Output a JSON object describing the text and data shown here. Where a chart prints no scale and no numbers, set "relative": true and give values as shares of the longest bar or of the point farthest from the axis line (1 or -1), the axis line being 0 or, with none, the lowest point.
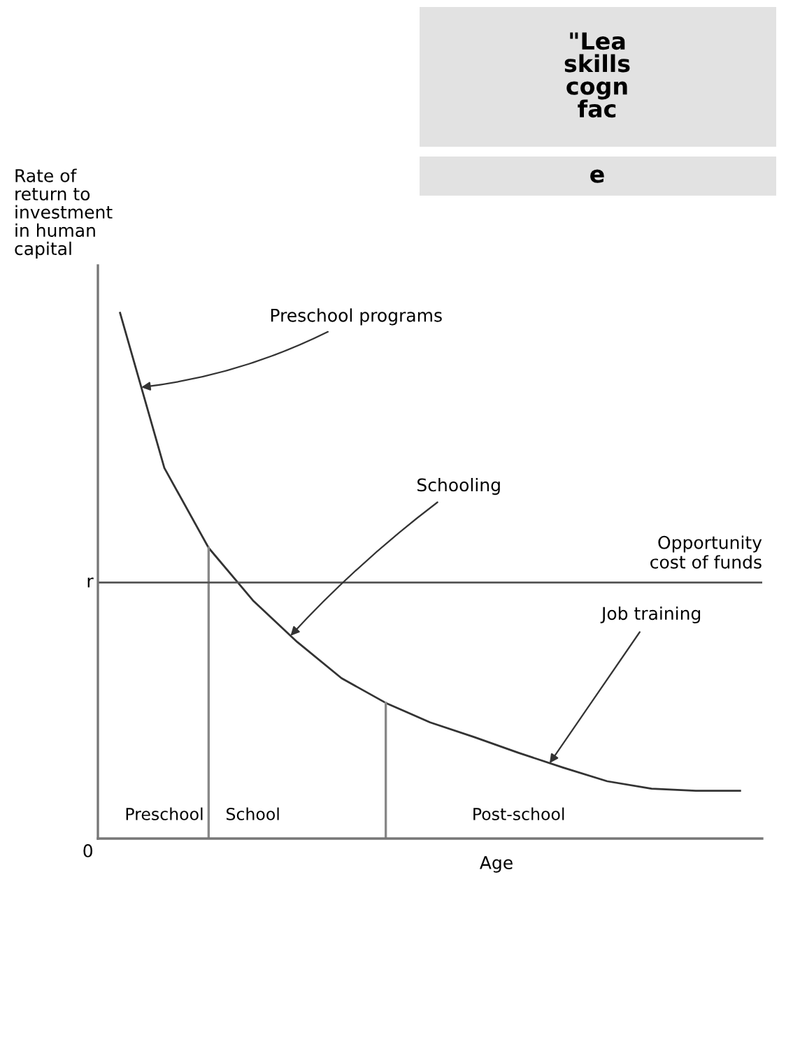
{
  "chart_data": {
    "type": "line",
    "relative": true,
    "xlabel": "Age",
    "ylabel": "Rate of\nreturn to\ninvestment\nin human\ncapital",
    "categories": [
      null,
      "Preschool",
      null,
      "School",
      null,
      null,
      null,
      null,
      null,
      "Post-school",
      null,
      null,
      null,
      null,
      null
    ],
    "series": [
      {
        "color": "#333333",
        "values": [
          1,
          0.705,
          0.553,
          0.453,
          0.374,
          0.305,
          0.258,
          0.221,
          0.193,
          0.163,
          0.135,
          0.109,
          0.095,
          0.091,
          0.091
        ]
      }
    ],
    "ref_lines": [
      {
        "axis": "y",
        "value": 0.487,
        "label": "r",
        "color": "#555555"
      }
    ],
    "annotations": [
      "Preschool programs",
      "Schooling",
      "Job training",
      "Opportunity\ncost of funds",
      "0",
      "\"Lea\nskills\ncogn\nfac",
      "e"
    ],
    "marker": "none",
    "line_style": "solid"
  }
}
